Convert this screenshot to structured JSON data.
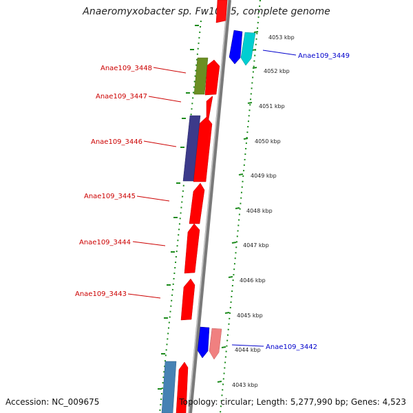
{
  "title": "Anaeromyxobacter sp. Fw109-5, complete genome",
  "accession": "Accession: NC_009675",
  "summary": "Topology: circular; Length: 5,277,990 bp; Genes: 4,523",
  "colors": {
    "backbone": "#808080",
    "ticks": "#1a8a1a",
    "gene_red": "#ff0000",
    "label_red": "#cc0000",
    "label_blue": "#0000cc"
  },
  "kbp_ticks": [
    "4053 kbp",
    "4052 kbp",
    "4051 kbp",
    "4050 kbp",
    "4049 kbp",
    "4048 kbp",
    "4047 kbp",
    "4046 kbp",
    "4045 kbp",
    "4044 kbp",
    "4043 kbp"
  ],
  "gene_labels": [
    {
      "text": "Anae109_3449",
      "color": "blue"
    },
    {
      "text": "Anae109_3448",
      "color": "red"
    },
    {
      "text": "Anae109_3447",
      "color": "red"
    },
    {
      "text": "Anae109_3446",
      "color": "red"
    },
    {
      "text": "Anae109_3445",
      "color": "red"
    },
    {
      "text": "Anae109_3444",
      "color": "red"
    },
    {
      "text": "Anae109_3443",
      "color": "red"
    },
    {
      "text": "Anae109_3442",
      "color": "blue"
    }
  ]
}
